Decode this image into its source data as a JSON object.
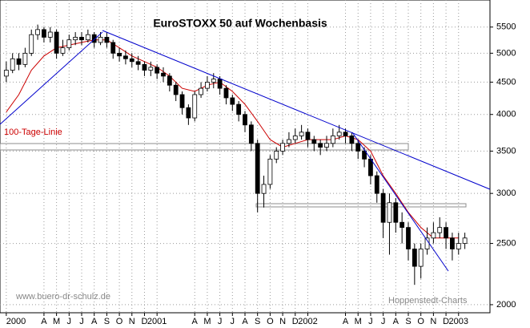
{
  "chart_data": {
    "type": "candlestick",
    "title": "EuroSTOXX 50 auf Wochenbasis",
    "annotations": [
      "100-Tage-Linie",
      "www.buero-dr-schulz.de",
      "Hoppenstedt-Charts"
    ],
    "log_scale": true,
    "grid": true,
    "ylim": [
      1942,
      6070
    ],
    "yticks": [
      2000,
      2500,
      3000,
      3500,
      4000,
      4500,
      5000,
      5500
    ],
    "xlim": [
      -0.5,
      38.5
    ],
    "xticks": [
      {
        "value": 0,
        "label": "2000"
      },
      {
        "value": 3,
        "label": "A"
      },
      {
        "value": 4,
        "label": "M"
      },
      {
        "value": 5,
        "label": "J"
      },
      {
        "value": 6,
        "label": "J"
      },
      {
        "value": 7,
        "label": "A"
      },
      {
        "value": 8,
        "label": "S"
      },
      {
        "value": 9,
        "label": "O"
      },
      {
        "value": 10,
        "label": "N"
      },
      {
        "value": 11,
        "label": "D"
      },
      {
        "value": 12,
        "label": "2001"
      },
      {
        "value": 15,
        "label": "A"
      },
      {
        "value": 16,
        "label": "M"
      },
      {
        "value": 17,
        "label": "J"
      },
      {
        "value": 18,
        "label": "J"
      },
      {
        "value": 19,
        "label": "A"
      },
      {
        "value": 20,
        "label": "S"
      },
      {
        "value": 21,
        "label": "O"
      },
      {
        "value": 22,
        "label": "N"
      },
      {
        "value": 23,
        "label": "D"
      },
      {
        "value": 24,
        "label": "2002"
      },
      {
        "value": 27,
        "label": "A"
      },
      {
        "value": 28,
        "label": "M"
      },
      {
        "value": 29,
        "label": "J"
      },
      {
        "value": 30,
        "label": "J"
      },
      {
        "value": 31,
        "label": "A"
      },
      {
        "value": 32,
        "label": "S"
      },
      {
        "value": 33,
        "label": "O"
      },
      {
        "value": 34,
        "label": "N"
      },
      {
        "value": 35,
        "label": "D"
      },
      {
        "value": 36,
        "label": "2003"
      }
    ],
    "x": [
      0,
      0.5,
      1,
      1.5,
      2,
      2.5,
      3,
      3.5,
      4,
      4.5,
      5,
      5.5,
      6,
      6.5,
      7,
      7.5,
      8,
      8.5,
      9,
      9.5,
      10,
      10.5,
      11,
      11.5,
      12,
      12.5,
      13,
      13.5,
      14,
      14.5,
      15,
      15.5,
      16,
      16.5,
      17,
      17.5,
      18,
      18.5,
      19,
      19.5,
      20,
      20.5,
      21,
      21.5,
      22,
      22.5,
      23,
      23.5,
      24,
      24.5,
      25,
      25.5,
      26,
      26.5,
      27,
      27.5,
      28,
      28.5,
      29,
      29.5,
      30,
      30.5,
      31,
      31.5,
      32,
      32.5,
      33,
      33.5,
      34,
      34.5,
      35,
      35.5,
      36,
      36.5
    ],
    "open": [
      4600,
      4700,
      4900,
      4800,
      5000,
      5350,
      5450,
      5300,
      5400,
      5000,
      5100,
      5250,
      5300,
      5250,
      5350,
      5200,
      5300,
      5200,
      5000,
      4950,
      4900,
      4850,
      4800,
      4700,
      4750,
      4650,
      4600,
      4450,
      4300,
      4100,
      3950,
      4300,
      4400,
      4500,
      4550,
      4400,
      4250,
      4150,
      4000,
      3850,
      3600,
      3000,
      3100,
      3400,
      3500,
      3600,
      3650,
      3700,
      3750,
      3650,
      3600,
      3550,
      3600,
      3700,
      3750,
      3700,
      3600,
      3500,
      3400,
      3200,
      3000,
      2700,
      2900,
      2700,
      2650,
      2450,
      2300,
      2450,
      2550,
      2600,
      2650,
      2550,
      2450,
      2500
    ],
    "high": [
      4850,
      5000,
      5000,
      5100,
      5450,
      5550,
      5500,
      5500,
      5450,
      5250,
      5350,
      5400,
      5400,
      5450,
      5400,
      5400,
      5400,
      5250,
      5100,
      5050,
      5000,
      4950,
      4850,
      4850,
      4800,
      4750,
      4650,
      4500,
      4350,
      4150,
      4350,
      4500,
      4600,
      4650,
      4600,
      4450,
      4300,
      4200,
      4050,
      3900,
      3650,
      3200,
      3450,
      3550,
      3650,
      3750,
      3800,
      3850,
      3800,
      3700,
      3650,
      3700,
      3800,
      3850,
      3800,
      3750,
      3650,
      3550,
      3450,
      3250,
      3050,
      3000,
      2950,
      2800,
      2700,
      2500,
      2500,
      2650,
      2700,
      2750,
      2700,
      2600,
      2600,
      2600
    ],
    "low": [
      4500,
      4650,
      4700,
      4750,
      4950,
      5250,
      5200,
      5200,
      4900,
      4950,
      5050,
      5150,
      5150,
      5200,
      5100,
      5150,
      5100,
      4900,
      4850,
      4800,
      4750,
      4700,
      4600,
      4600,
      4550,
      4500,
      4350,
      4200,
      4000,
      3850,
      3900,
      4250,
      4350,
      4400,
      4300,
      4150,
      4050,
      3900,
      3750,
      3500,
      2800,
      2850,
      3050,
      3350,
      3450,
      3550,
      3600,
      3650,
      3550,
      3500,
      3450,
      3500,
      3550,
      3650,
      3600,
      3500,
      3400,
      3300,
      3100,
      2900,
      2550,
      2400,
      2600,
      2500,
      2350,
      2150,
      2200,
      2400,
      2500,
      2550,
      2450,
      2350,
      2400,
      2450
    ],
    "close": [
      4700,
      4900,
      4800,
      5000,
      5350,
      5450,
      5300,
      5400,
      5000,
      5100,
      5250,
      5300,
      5250,
      5350,
      5200,
      5300,
      5200,
      5000,
      4950,
      4900,
      4850,
      4800,
      4700,
      4750,
      4650,
      4600,
      4450,
      4300,
      4100,
      3950,
      4300,
      4400,
      4500,
      4550,
      4400,
      4250,
      4150,
      4000,
      3850,
      3600,
      3000,
      3100,
      3400,
      3500,
      3600,
      3650,
      3700,
      3750,
      3650,
      3600,
      3550,
      3600,
      3700,
      3750,
      3700,
      3600,
      3500,
      3400,
      3200,
      3000,
      2700,
      2900,
      2700,
      2650,
      2450,
      2300,
      2450,
      2550,
      2600,
      2650,
      2550,
      2450,
      2500,
      2550
    ],
    "candle_colors": {
      "up": "#ffffff",
      "down": "#000000",
      "edge": "#000000"
    },
    "moving_average": {
      "color": "#cc0000",
      "x": [
        0,
        1,
        2,
        3,
        4,
        5,
        6,
        7,
        8,
        9,
        10,
        11,
        12,
        13,
        14,
        15,
        16,
        17,
        18,
        19,
        20,
        21,
        22,
        23,
        24,
        25,
        26,
        27,
        28,
        29,
        30,
        31,
        32,
        33,
        34,
        35,
        36
      ],
      "values": [
        4035,
        4300,
        4700,
        4950,
        5100,
        5150,
        5200,
        5250,
        5250,
        5100,
        4950,
        4850,
        4750,
        4600,
        4400,
        4350,
        4450,
        4500,
        4350,
        4150,
        3900,
        3650,
        3550,
        3600,
        3650,
        3650,
        3650,
        3700,
        3650,
        3500,
        3200,
        3000,
        2800,
        2650,
        2550,
        2550,
        2550
      ]
    },
    "trendline_color": "#0000cc"
  }
}
